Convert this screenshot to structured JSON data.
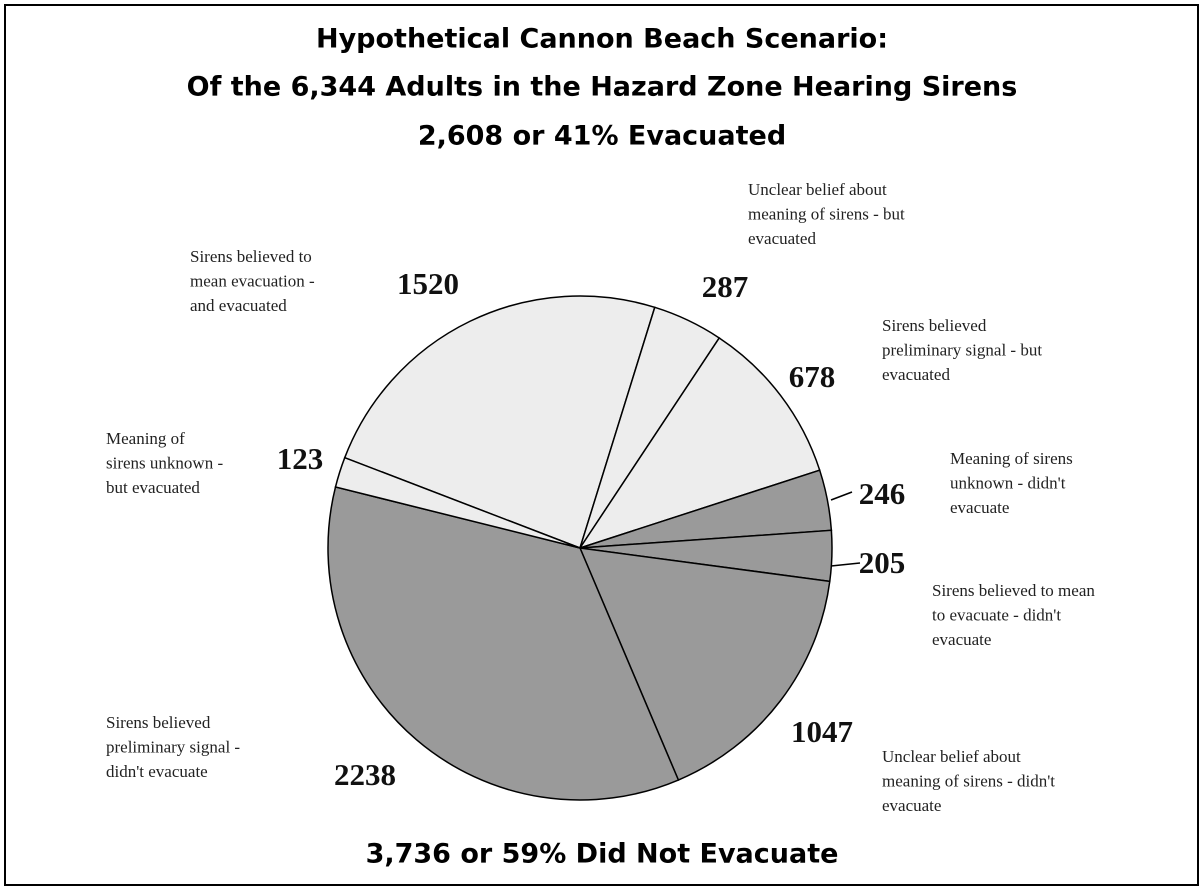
{
  "chart_data": {
    "type": "pie",
    "title": [
      "Hypothetical Cannon Beach Scenario:",
      "Of the 6,344 Adults in the Hazard Zone Hearing Sirens",
      "2,608 or 41% Evacuated"
    ],
    "footer": "3,736 or 59% Did Not Evacuate",
    "categories": [
      [
        "Sirens believed to",
        "mean evacuation -",
        "and evacuated"
      ],
      [
        "Unclear belief about",
        "meaning of sirens - but",
        "evacuated"
      ],
      [
        "Sirens believed",
        "preliminary signal - but",
        "evacuated"
      ],
      [
        "Meaning of sirens",
        "unknown - didn't",
        "evacuate"
      ],
      [
        "Sirens believed to mean",
        "to evacuate - didn't",
        "evacuate"
      ],
      [
        "Unclear belief about",
        "meaning of sirens - didn't",
        "evacuate"
      ],
      [
        "Sirens believed",
        "preliminary signal -",
        "didn't evacuate"
      ],
      [
        "Meaning of",
        "sirens unknown -",
        "but evacuated"
      ]
    ],
    "values": [
      1520,
      287,
      678,
      246,
      205,
      1047,
      2238,
      123
    ],
    "colors": [
      "#ededed",
      "#ededed",
      "#ededed",
      "#9a9a9a",
      "#9a9a9a",
      "#9a9a9a",
      "#9a9a9a",
      "#ededed"
    ]
  }
}
